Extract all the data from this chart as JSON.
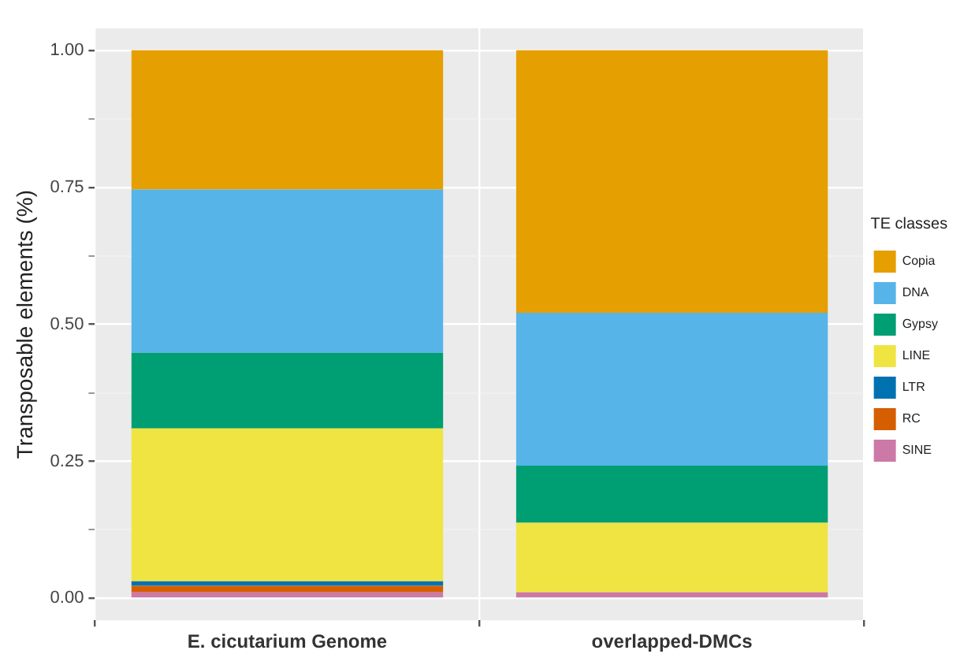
{
  "chart_data": {
    "type": "bar",
    "stacked": true,
    "ylabel": "Transposable elements (%)",
    "legend_title": "TE classes",
    "legend": "right",
    "grid": true,
    "categories": [
      "E. cicutarium Genome",
      "overlapped-DMCs"
    ],
    "ylim": [
      -0.04,
      1.04
    ],
    "yticks": [
      {
        "value": 0,
        "label": "0.00"
      },
      {
        "value": 0.125,
        "label": null
      },
      {
        "value": 0.25,
        "label": "0.25"
      },
      {
        "value": 0.375,
        "label": null
      },
      {
        "value": 0.5,
        "label": "0.50"
      },
      {
        "value": 0.625,
        "label": null
      },
      {
        "value": 0.75,
        "label": "0.75"
      },
      {
        "value": 0.875,
        "label": null
      },
      {
        "value": 1,
        "label": "1.00"
      }
    ],
    "series": [
      {
        "name": "SINE",
        "color": "#cc79a7",
        "values": [
          0.011,
          0.011
        ]
      },
      {
        "name": "RC",
        "color": "#d55e00",
        "values": [
          0.012,
          0
        ]
      },
      {
        "name": "LTR",
        "color": "#0072b2",
        "values": [
          0.008,
          0
        ]
      },
      {
        "name": "LINE",
        "color": "#f0e442",
        "values": [
          0.279,
          0.127
        ]
      },
      {
        "name": "Gypsy",
        "color": "#009e73",
        "values": [
          0.138,
          0.104
        ]
      },
      {
        "name": "DNA",
        "color": "#56b4e9",
        "values": [
          0.298,
          0.279
        ]
      },
      {
        "name": "Copia",
        "color": "#e69f00",
        "values": [
          0.254,
          0.479
        ]
      }
    ]
  }
}
